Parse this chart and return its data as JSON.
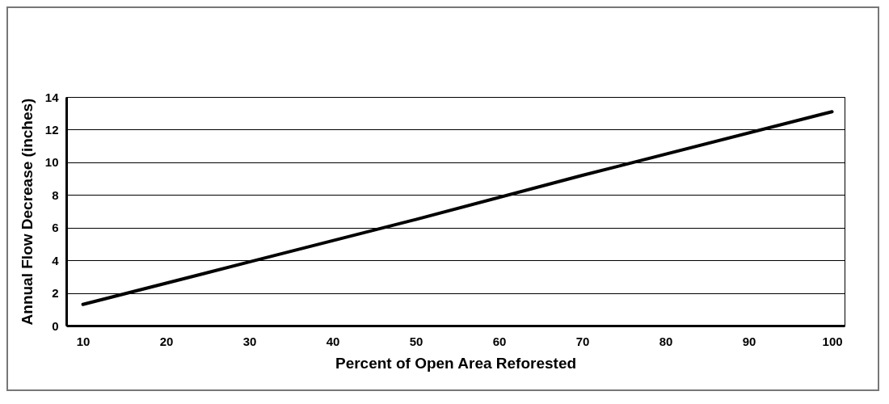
{
  "chart_data": {
    "type": "line",
    "xlabel": "Percent of Open Area Reforested",
    "ylabel": "Annual Flow Decrease (inches)",
    "x": [
      10,
      30,
      50,
      70,
      100
    ],
    "series": [
      {
        "color": "#000000",
        "values": [
          1.3,
          3.9,
          6.5,
          9.2,
          13.1
        ]
      }
    ],
    "xlim": [
      8,
      101.5
    ],
    "xticks": [
      10,
      20,
      30,
      40,
      50,
      60,
      70,
      80,
      90,
      100
    ],
    "ylim": [
      0,
      14
    ],
    "yticks": [
      0,
      2,
      4,
      6,
      8,
      10,
      12,
      14
    ],
    "grid": "y",
    "marker": "none",
    "line_style": "solid"
  }
}
